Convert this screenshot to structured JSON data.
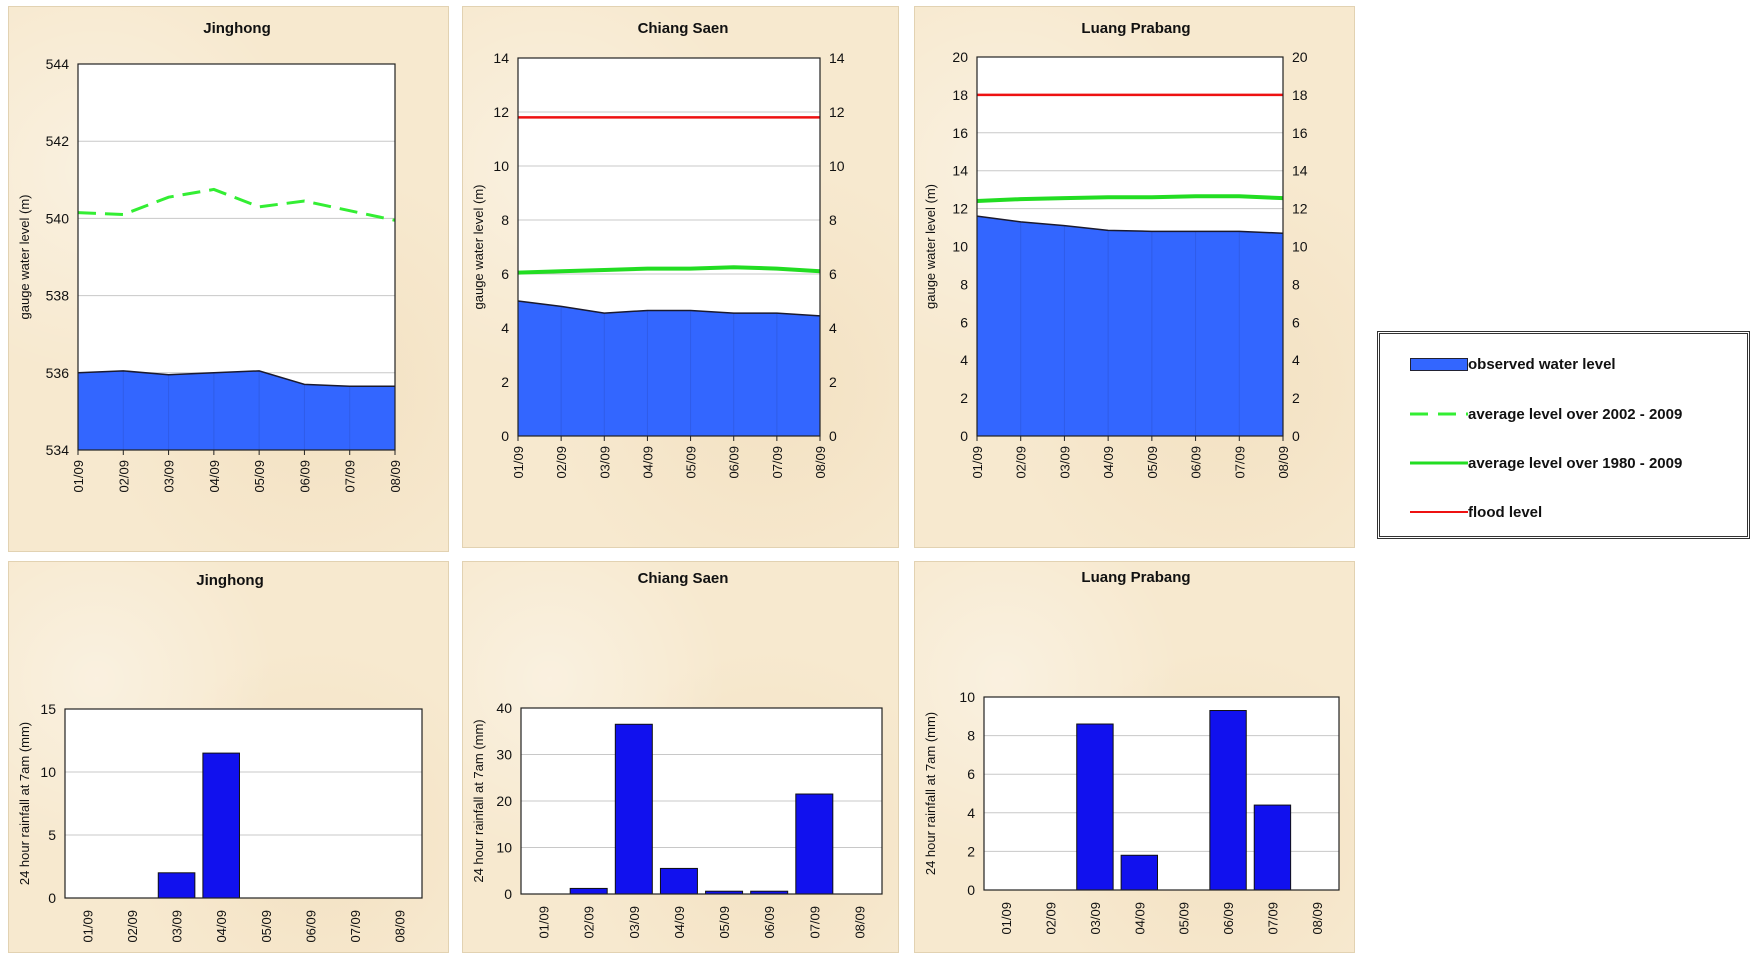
{
  "colors": {
    "observed": "#3366ff",
    "avg_2002_2009": "#33ee33",
    "avg_1980_2009": "#22dd22",
    "flood": "#ee1111",
    "rain_bar": "#1111ee"
  },
  "legend": {
    "observed_label": "observed water level",
    "avg_2002_2009_label": "average level over 2002 - 2009",
    "avg_1980_2009_label": "average level over 1980 - 2009",
    "flood_label": "flood level"
  },
  "chart_data": [
    {
      "id": "wl-jinghong",
      "type": "area",
      "title": "Jinghong",
      "ylabel": "gauge water level (m)",
      "ylim": [
        534,
        544
      ],
      "yticks": [
        534,
        536,
        538,
        540,
        542,
        544
      ],
      "right_axis": false,
      "categories": [
        "01/09",
        "02/09",
        "03/09",
        "04/09",
        "05/09",
        "06/09",
        "07/09",
        "08/09"
      ],
      "observed": [
        536.0,
        536.05,
        535.95,
        536.0,
        536.05,
        535.7,
        535.65,
        535.65
      ],
      "avg_2002_2009": [
        540.15,
        540.1,
        540.55,
        540.75,
        540.3,
        540.45,
        540.2,
        539.95
      ],
      "avg_1980_2009": null,
      "flood_level": null
    },
    {
      "id": "wl-chiang-saen",
      "type": "area",
      "title": "Chiang Saen",
      "ylabel": "gauge water level (m)",
      "ylim": [
        0,
        14
      ],
      "yticks": [
        0,
        2,
        4,
        6,
        8,
        10,
        12,
        14
      ],
      "right_axis": true,
      "categories": [
        "01/09",
        "02/09",
        "03/09",
        "04/09",
        "05/09",
        "06/09",
        "07/09",
        "08/09"
      ],
      "observed": [
        5.0,
        4.8,
        4.55,
        4.65,
        4.65,
        4.55,
        4.55,
        4.45
      ],
      "avg_2002_2009": null,
      "avg_1980_2009": [
        6.05,
        6.1,
        6.15,
        6.2,
        6.2,
        6.25,
        6.2,
        6.1
      ],
      "flood_level": 11.8
    },
    {
      "id": "wl-luang-prabang",
      "type": "area",
      "title": "Luang Prabang",
      "ylabel": "gauge water level (m)",
      "ylim": [
        0,
        20
      ],
      "yticks": [
        0,
        2,
        4,
        6,
        8,
        10,
        12,
        14,
        16,
        18,
        20
      ],
      "right_axis": true,
      "categories": [
        "01/09",
        "02/09",
        "03/09",
        "04/09",
        "05/09",
        "06/09",
        "07/09",
        "08/09"
      ],
      "observed": [
        11.6,
        11.3,
        11.1,
        10.85,
        10.8,
        10.8,
        10.8,
        10.7
      ],
      "avg_2002_2009": null,
      "avg_1980_2009": [
        12.4,
        12.5,
        12.55,
        12.6,
        12.6,
        12.65,
        12.65,
        12.55
      ],
      "flood_level": 18.0
    },
    {
      "id": "rf-jinghong",
      "type": "bar",
      "title": "Jinghong",
      "ylabel": "24 hour rainfall at 7am (mm)",
      "ylim": [
        0,
        15
      ],
      "yticks": [
        0,
        5,
        10,
        15
      ],
      "categories": [
        "01/09",
        "02/09",
        "03/09",
        "04/09",
        "05/09",
        "06/09",
        "07/09",
        "08/09"
      ],
      "values": [
        0,
        0,
        2.0,
        11.5,
        0,
        0,
        0,
        0
      ]
    },
    {
      "id": "rf-chiang-saen",
      "type": "bar",
      "title": "Chiang Saen",
      "ylabel": "24 hour rainfall at 7am (mm)",
      "ylim": [
        0,
        40
      ],
      "yticks": [
        0,
        10,
        20,
        30,
        40
      ],
      "categories": [
        "01/09",
        "02/09",
        "03/09",
        "04/09",
        "05/09",
        "06/09",
        "07/09",
        "08/09"
      ],
      "values": [
        0,
        1.2,
        36.5,
        5.5,
        0.6,
        0.6,
        21.5,
        0
      ]
    },
    {
      "id": "rf-luang-prabang",
      "type": "bar",
      "title": "Luang Prabang",
      "ylabel": "24 hour rainfall at 7am (mm)",
      "ylim": [
        0,
        10
      ],
      "yticks": [
        0,
        2,
        4,
        6,
        8,
        10
      ],
      "categories": [
        "01/09",
        "02/09",
        "03/09",
        "04/09",
        "05/09",
        "06/09",
        "07/09",
        "08/09"
      ],
      "values": [
        0,
        0,
        8.6,
        1.8,
        0,
        9.3,
        4.4,
        0
      ]
    }
  ]
}
